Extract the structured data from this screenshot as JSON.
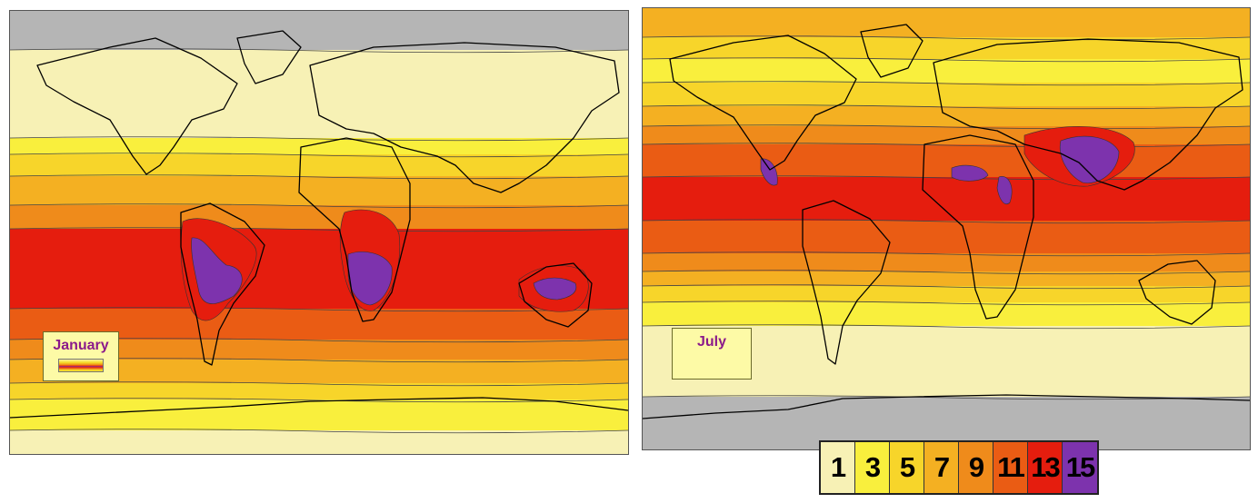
{
  "maps": [
    {
      "id": "jan",
      "title": "January"
    },
    {
      "id": "jul",
      "title": "July"
    }
  ],
  "legend": {
    "items": [
      {
        "label": "1",
        "color": "#f7f1b5"
      },
      {
        "label": "3",
        "color": "#f9ef3d"
      },
      {
        "label": "5",
        "color": "#f7d52a"
      },
      {
        "label": "7",
        "color": "#f4b022"
      },
      {
        "label": "9",
        "color": "#ef8b1b"
      },
      {
        "label": "11",
        "color": "#ea5c14"
      },
      {
        "label": "13",
        "color": "#e51d0e"
      },
      {
        "label": "15",
        "color": "#7d33ad"
      }
    ]
  },
  "colors": {
    "no_data": "#b5b5b5",
    "coastline": "#000000",
    "contour": "#444444"
  }
}
